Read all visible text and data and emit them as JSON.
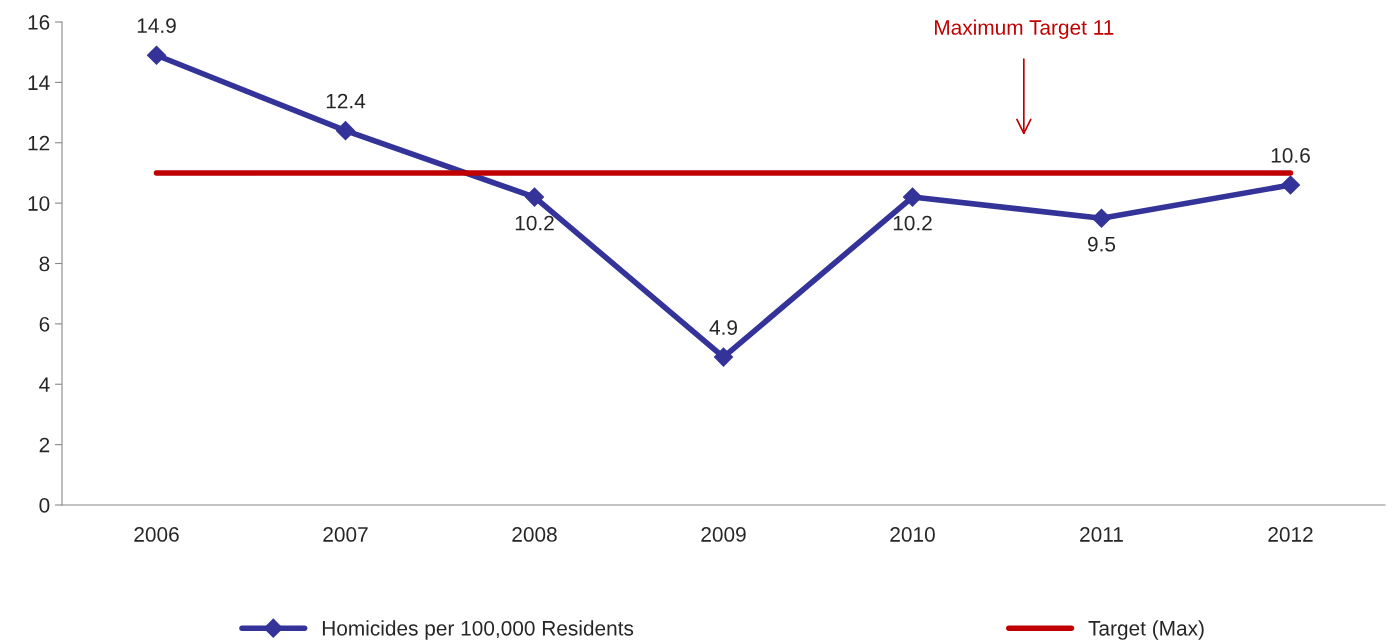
{
  "chart_data": {
    "type": "line",
    "categories": [
      "2006",
      "2007",
      "2008",
      "2009",
      "2010",
      "2011",
      "2012"
    ],
    "series": [
      {
        "name": "Homicides per 100,000 Residents",
        "color": "#333399",
        "values": [
          14.9,
          12.4,
          10.2,
          4.9,
          10.2,
          9.5,
          10.6
        ],
        "marker": "diamond",
        "data_labels": true
      },
      {
        "name": "Target (Max)",
        "color": "#c00000",
        "values": [
          11,
          11,
          11,
          11,
          11,
          11,
          11
        ],
        "marker": "none"
      }
    ],
    "annotations": [
      "Maximum Target 11"
    ],
    "ylim": [
      0,
      16
    ],
    "yticks": [
      0,
      2,
      4,
      6,
      8,
      10,
      12,
      14,
      16
    ],
    "grid": false,
    "legend": "bottom"
  }
}
